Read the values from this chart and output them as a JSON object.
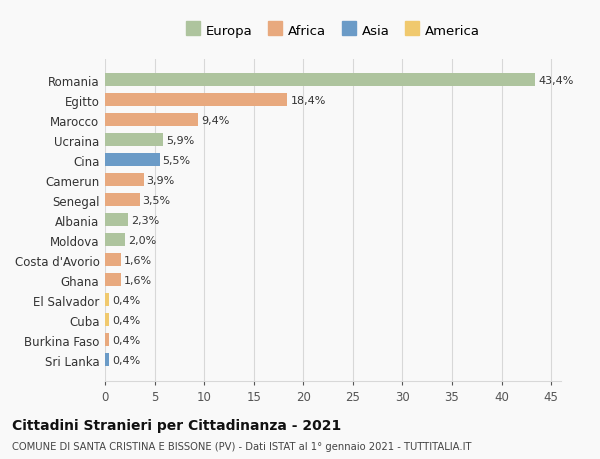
{
  "categories": [
    "Romania",
    "Egitto",
    "Marocco",
    "Ucraina",
    "Cina",
    "Camerun",
    "Senegal",
    "Albania",
    "Moldova",
    "Costa d'Avorio",
    "Ghana",
    "El Salvador",
    "Cuba",
    "Burkina Faso",
    "Sri Lanka"
  ],
  "values": [
    43.4,
    18.4,
    9.4,
    5.9,
    5.5,
    3.9,
    3.5,
    2.3,
    2.0,
    1.6,
    1.6,
    0.4,
    0.4,
    0.4,
    0.4
  ],
  "labels": [
    "43,4%",
    "18,4%",
    "9,4%",
    "5,9%",
    "5,5%",
    "3,9%",
    "3,5%",
    "2,3%",
    "2,0%",
    "1,6%",
    "1,6%",
    "0,4%",
    "0,4%",
    "0,4%",
    "0,4%"
  ],
  "continents": [
    "Europa",
    "Africa",
    "Africa",
    "Europa",
    "Asia",
    "Africa",
    "Africa",
    "Europa",
    "Europa",
    "Africa",
    "Africa",
    "America",
    "America",
    "Africa",
    "Asia"
  ],
  "colors": {
    "Europa": "#aec49e",
    "Africa": "#e8a97e",
    "Asia": "#6b9bc7",
    "America": "#f0c96e"
  },
  "legend_order": [
    "Europa",
    "Africa",
    "Asia",
    "America"
  ],
  "title": "Cittadini Stranieri per Cittadinanza - 2021",
  "subtitle": "COMUNE DI SANTA CRISTINA E BISSONE (PV) - Dati ISTAT al 1° gennaio 2021 - TUTTITALIA.IT",
  "xlim": [
    0,
    46
  ],
  "xticks": [
    0,
    5,
    10,
    15,
    20,
    25,
    30,
    35,
    40,
    45
  ],
  "background_color": "#f9f9f9",
  "grid_color": "#d8d8d8"
}
